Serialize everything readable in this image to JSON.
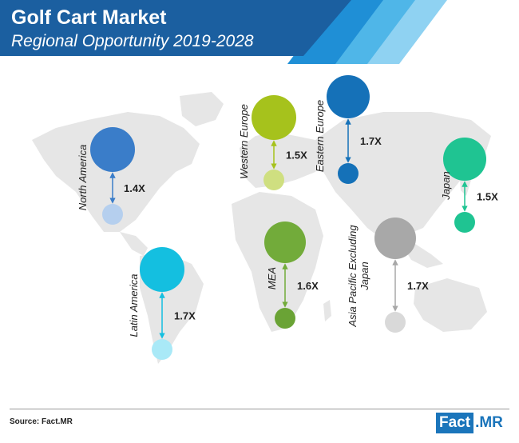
{
  "header": {
    "title": "Golf Cart Market",
    "subtitle": "Regional Opportunity 2019-2028"
  },
  "footer": {
    "source": "Source: Fact.MR",
    "logo_left": "Fact",
    "logo_right": ".MR"
  },
  "colors": {
    "banner": "#1b5fa0",
    "banner_stripe_1": "#1f8fd6",
    "banner_stripe_2": "#4fb6e8",
    "banner_stripe_3": "#8fd2f2",
    "map": "#e6e6e6"
  },
  "chart_data": {
    "type": "bubble-map",
    "title": "Golf Cart Market",
    "subtitle": "Regional Opportunity 2019-2028",
    "regions": [
      {
        "name": "North America",
        "growth": "1.4X",
        "multiple": 1.4,
        "color_2028": "#3a7dc9",
        "color_2019": "#b5cfee"
      },
      {
        "name": "Latin America",
        "growth": "1.7X",
        "multiple": 1.7,
        "color_2028": "#14bfe0",
        "color_2019": "#a9e9f7"
      },
      {
        "name": "Western Europe",
        "growth": "1.5X",
        "multiple": 1.5,
        "color_2028": "#a6c21c",
        "color_2019": "#cfdf80"
      },
      {
        "name": "Eastern Europe",
        "growth": "1.7X",
        "multiple": 1.7,
        "color_2028": "#1571b8",
        "color_2019": "#1571b8"
      },
      {
        "name": "MEA",
        "growth": "1.6X",
        "multiple": 1.6,
        "color_2028": "#72ab3a",
        "color_2019": "#6aa335"
      },
      {
        "name": "Asia Pacific Excluding Japan",
        "name_line1": "Asia Pacific Excluding",
        "name_line2": "Japan",
        "growth": "1.7X",
        "multiple": 1.7,
        "color_2028": "#a8a8a8",
        "color_2019": "#d9d9d9"
      },
      {
        "name": "Japan",
        "growth": "1.5X",
        "multiple": 1.5,
        "color_2028": "#1fc492",
        "color_2019": "#1fc492"
      }
    ]
  }
}
